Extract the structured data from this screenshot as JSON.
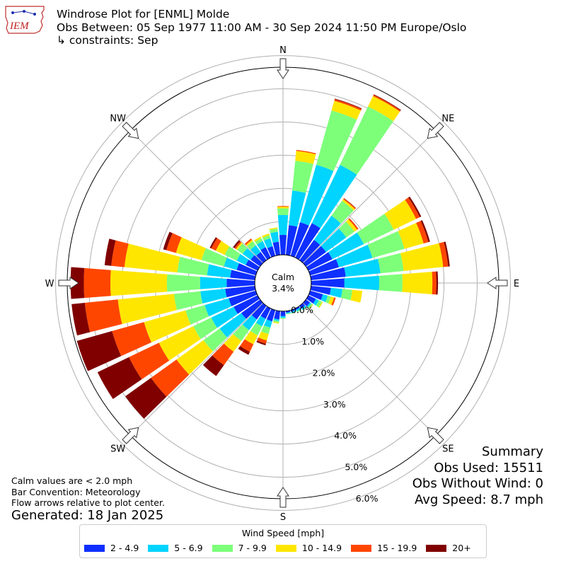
{
  "header": {
    "title": "Windrose Plot for [ENML] Molde",
    "period": "Obs Between: 05 Sep 1977 11:00 AM - 30 Sep 2024 11:50 PM Europe/Oslo",
    "constraints": "↳ constraints: Sep"
  },
  "logo": {
    "text": "IEM",
    "icon": "iem-logo-icon"
  },
  "notes": {
    "calm_note": "Calm values are < 2.0 mph",
    "bar_convention": "Bar Convention: Meteorology",
    "flow_note": "Flow arrows relative to plot center."
  },
  "generated": "Generated: 18 Jan 2025",
  "summary": {
    "title": "Summary",
    "obs_used": "Obs Used: 15511",
    "obs_without_wind": "Obs Without Wind: 0",
    "avg_speed": "Avg Speed: 8.7 mph"
  },
  "legend": {
    "title": "Wind Speed [mph]",
    "items": [
      {
        "label": "2 - 4.9",
        "color": "#0f2fff"
      },
      {
        "label": "5 - 6.9",
        "color": "#00d4ff"
      },
      {
        "label": "7 - 9.9",
        "color": "#7dff7a"
      },
      {
        "label": "10 - 14.9",
        "color": "#ffe600"
      },
      {
        "label": "15 - 19.9",
        "color": "#ff4600"
      },
      {
        "label": "20+",
        "color": "#800000"
      }
    ]
  },
  "chart_data": {
    "type": "windrose",
    "calm_label": "Calm",
    "calm_percent": "3.4%",
    "compass_labels": [
      "N",
      "NE",
      "E",
      "SE",
      "S",
      "SW",
      "W",
      "NW"
    ],
    "radial_tick_labels": [
      "0.0%",
      "1.0%",
      "2.0%",
      "3.0%",
      "4.0%",
      "5.0%",
      "6.0%"
    ],
    "radial_ticks": [
      0,
      1,
      2,
      3,
      4,
      5,
      6
    ],
    "rmax": 6.5,
    "calm_hole": 0.85,
    "bins": [
      "2 - 4.9",
      "5 - 6.9",
      "7 - 9.9",
      "10 - 14.9",
      "15 - 19.9",
      "20+"
    ],
    "directions": [
      {
        "dir": 0,
        "values": [
          0.6,
          0.6,
          0.2,
          0.05,
          0.02,
          0.0
        ]
      },
      {
        "dir": 10,
        "values": [
          0.9,
          1.05,
          0.9,
          0.3,
          0.03,
          0.0
        ]
      },
      {
        "dir": 20,
        "values": [
          1.05,
          1.8,
          1.7,
          0.3,
          0.05,
          0.02
        ]
      },
      {
        "dir": 30,
        "values": [
          1.15,
          1.95,
          1.95,
          0.35,
          0.04,
          0.02
        ]
      },
      {
        "dir": 40,
        "values": [
          0.75,
          0.9,
          0.55,
          0.06,
          0.03,
          0.01
        ]
      },
      {
        "dir": 50,
        "values": [
          0.75,
          0.75,
          0.3,
          0.1,
          0.05,
          0.0
        ]
      },
      {
        "dir": 60,
        "values": [
          0.8,
          1.05,
          1.0,
          0.75,
          0.12,
          0.05
        ]
      },
      {
        "dir": 70,
        "values": [
          0.9,
          1.05,
          1.0,
          0.6,
          0.15,
          0.05
        ]
      },
      {
        "dir": 80,
        "values": [
          1.05,
          1.05,
          0.7,
          1.2,
          0.15,
          0.05
        ]
      },
      {
        "dir": 90,
        "values": [
          1.0,
          1.05,
          0.7,
          0.9,
          0.12,
          0.05
        ]
      },
      {
        "dir": 100,
        "values": [
          0.6,
          0.35,
          0.3,
          0.3,
          0.0,
          0.0
        ]
      },
      {
        "dir": 110,
        "values": [
          0.4,
          0.15,
          0.1,
          0.1,
          0.05,
          0.0
        ]
      },
      {
        "dir": 120,
        "values": [
          0.25,
          0.1,
          0.1,
          0.03,
          0.0,
          0.0
        ]
      },
      {
        "dir": 130,
        "values": [
          0.15,
          0.05,
          0.05,
          0.02,
          0.0,
          0.0
        ]
      },
      {
        "dir": 140,
        "values": [
          0.1,
          0.05,
          0.02,
          0.0,
          0.0,
          0.0
        ]
      },
      {
        "dir": 150,
        "values": [
          0.05,
          0.05,
          0.03,
          0.0,
          0.0,
          0.0
        ]
      },
      {
        "dir": 160,
        "values": [
          0.05,
          0.04,
          0.02,
          0.0,
          0.0,
          0.0
        ]
      },
      {
        "dir": 170,
        "values": [
          0.05,
          0.03,
          0.02,
          0.0,
          0.0,
          0.0
        ]
      },
      {
        "dir": 180,
        "values": [
          0.15,
          0.05,
          0.03,
          0.0,
          0.0,
          0.0
        ]
      },
      {
        "dir": 190,
        "values": [
          0.25,
          0.05,
          0.05,
          0.03,
          0.0,
          0.0
        ]
      },
      {
        "dir": 200,
        "values": [
          0.35,
          0.2,
          0.2,
          0.2,
          0.1,
          0.05
        ]
      },
      {
        "dir": 210,
        "values": [
          0.35,
          0.25,
          0.3,
          0.3,
          0.25,
          0.1
        ]
      },
      {
        "dir": 220,
        "values": [
          0.5,
          0.4,
          0.4,
          0.4,
          0.5,
          0.4
        ]
      },
      {
        "dir": 230,
        "values": [
          0.7,
          0.8,
          0.6,
          1.0,
          0.95,
          0.95
        ]
      },
      {
        "dir": 240,
        "values": [
          0.8,
          0.75,
          0.6,
          1.15,
          1.0,
          1.05
        ]
      },
      {
        "dir": 250,
        "values": [
          0.85,
          0.75,
          0.6,
          1.3,
          1.0,
          1.1
        ]
      },
      {
        "dir": 260,
        "values": [
          0.9,
          0.75,
          0.8,
          1.7,
          1.0,
          0.4
        ]
      },
      {
        "dir": 270,
        "values": [
          0.85,
          0.8,
          1.0,
          1.7,
          0.8,
          0.4
        ]
      },
      {
        "dir": 280,
        "values": [
          0.75,
          0.7,
          0.9,
          1.6,
          0.4,
          0.2
        ]
      },
      {
        "dir": 290,
        "values": [
          0.6,
          0.4,
          0.7,
          0.8,
          0.3,
          0.1
        ]
      },
      {
        "dir": 300,
        "values": [
          0.4,
          0.3,
          0.4,
          0.3,
          0.15,
          0.05
        ]
      },
      {
        "dir": 310,
        "values": [
          0.35,
          0.3,
          0.2,
          0.05,
          0.05,
          0.05
        ]
      },
      {
        "dir": 320,
        "values": [
          0.3,
          0.25,
          0.15,
          0.05,
          0.05,
          0.0
        ]
      },
      {
        "dir": 330,
        "values": [
          0.35,
          0.2,
          0.1,
          0.05,
          0.0,
          0.0
        ]
      },
      {
        "dir": 340,
        "values": [
          0.3,
          0.25,
          0.1,
          0.05,
          0.0,
          0.0
        ]
      },
      {
        "dir": 350,
        "values": [
          0.4,
          0.3,
          0.1,
          0.03,
          0.0,
          0.0
        ]
      }
    ]
  }
}
